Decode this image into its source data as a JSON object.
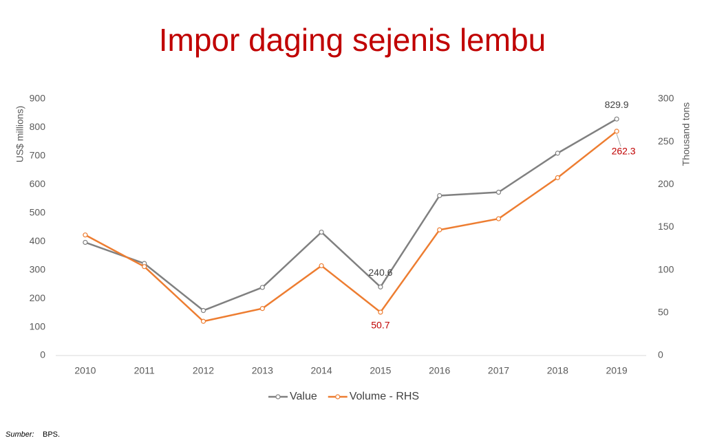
{
  "chart_data": {
    "type": "line",
    "title": "Impor daging sejenis lembu",
    "y_label": "US$ millions)",
    "y2_label": "Thousand tons",
    "categories": [
      "2010",
      "2011",
      "2012",
      "2013",
      "2014",
      "2015",
      "2016",
      "2017",
      "2018",
      "2019"
    ],
    "series": [
      {
        "name": "Value",
        "color": "#808080",
        "label_color": "#404040",
        "values": [
          397,
          323,
          158,
          239,
          433,
          240.6,
          561,
          573,
          710,
          829.9
        ],
        "value_labels": [
          null,
          null,
          null,
          null,
          null,
          "240.6",
          null,
          null,
          null,
          "829.9"
        ]
      },
      {
        "name": "Volume - RHS",
        "color": "#ed7d31",
        "label_color": "#c00000",
        "axis": "y2",
        "values": [
          141,
          104,
          40,
          55,
          105,
          50.7,
          147,
          160,
          208,
          262.3
        ],
        "value_labels": [
          null,
          null,
          null,
          null,
          null,
          "50.7",
          null,
          null,
          null,
          "262.3"
        ]
      }
    ],
    "ylim": [
      0,
      900
    ],
    "yticks": [
      0,
      100,
      200,
      300,
      400,
      500,
      600,
      700,
      800,
      900
    ],
    "y2lim": [
      0,
      300
    ],
    "y2ticks": [
      0,
      50,
      100,
      150,
      200,
      250,
      300
    ],
    "grid": false,
    "legend": "bottom"
  },
  "source": {
    "label": "Sumber:",
    "text": "BPS."
  }
}
